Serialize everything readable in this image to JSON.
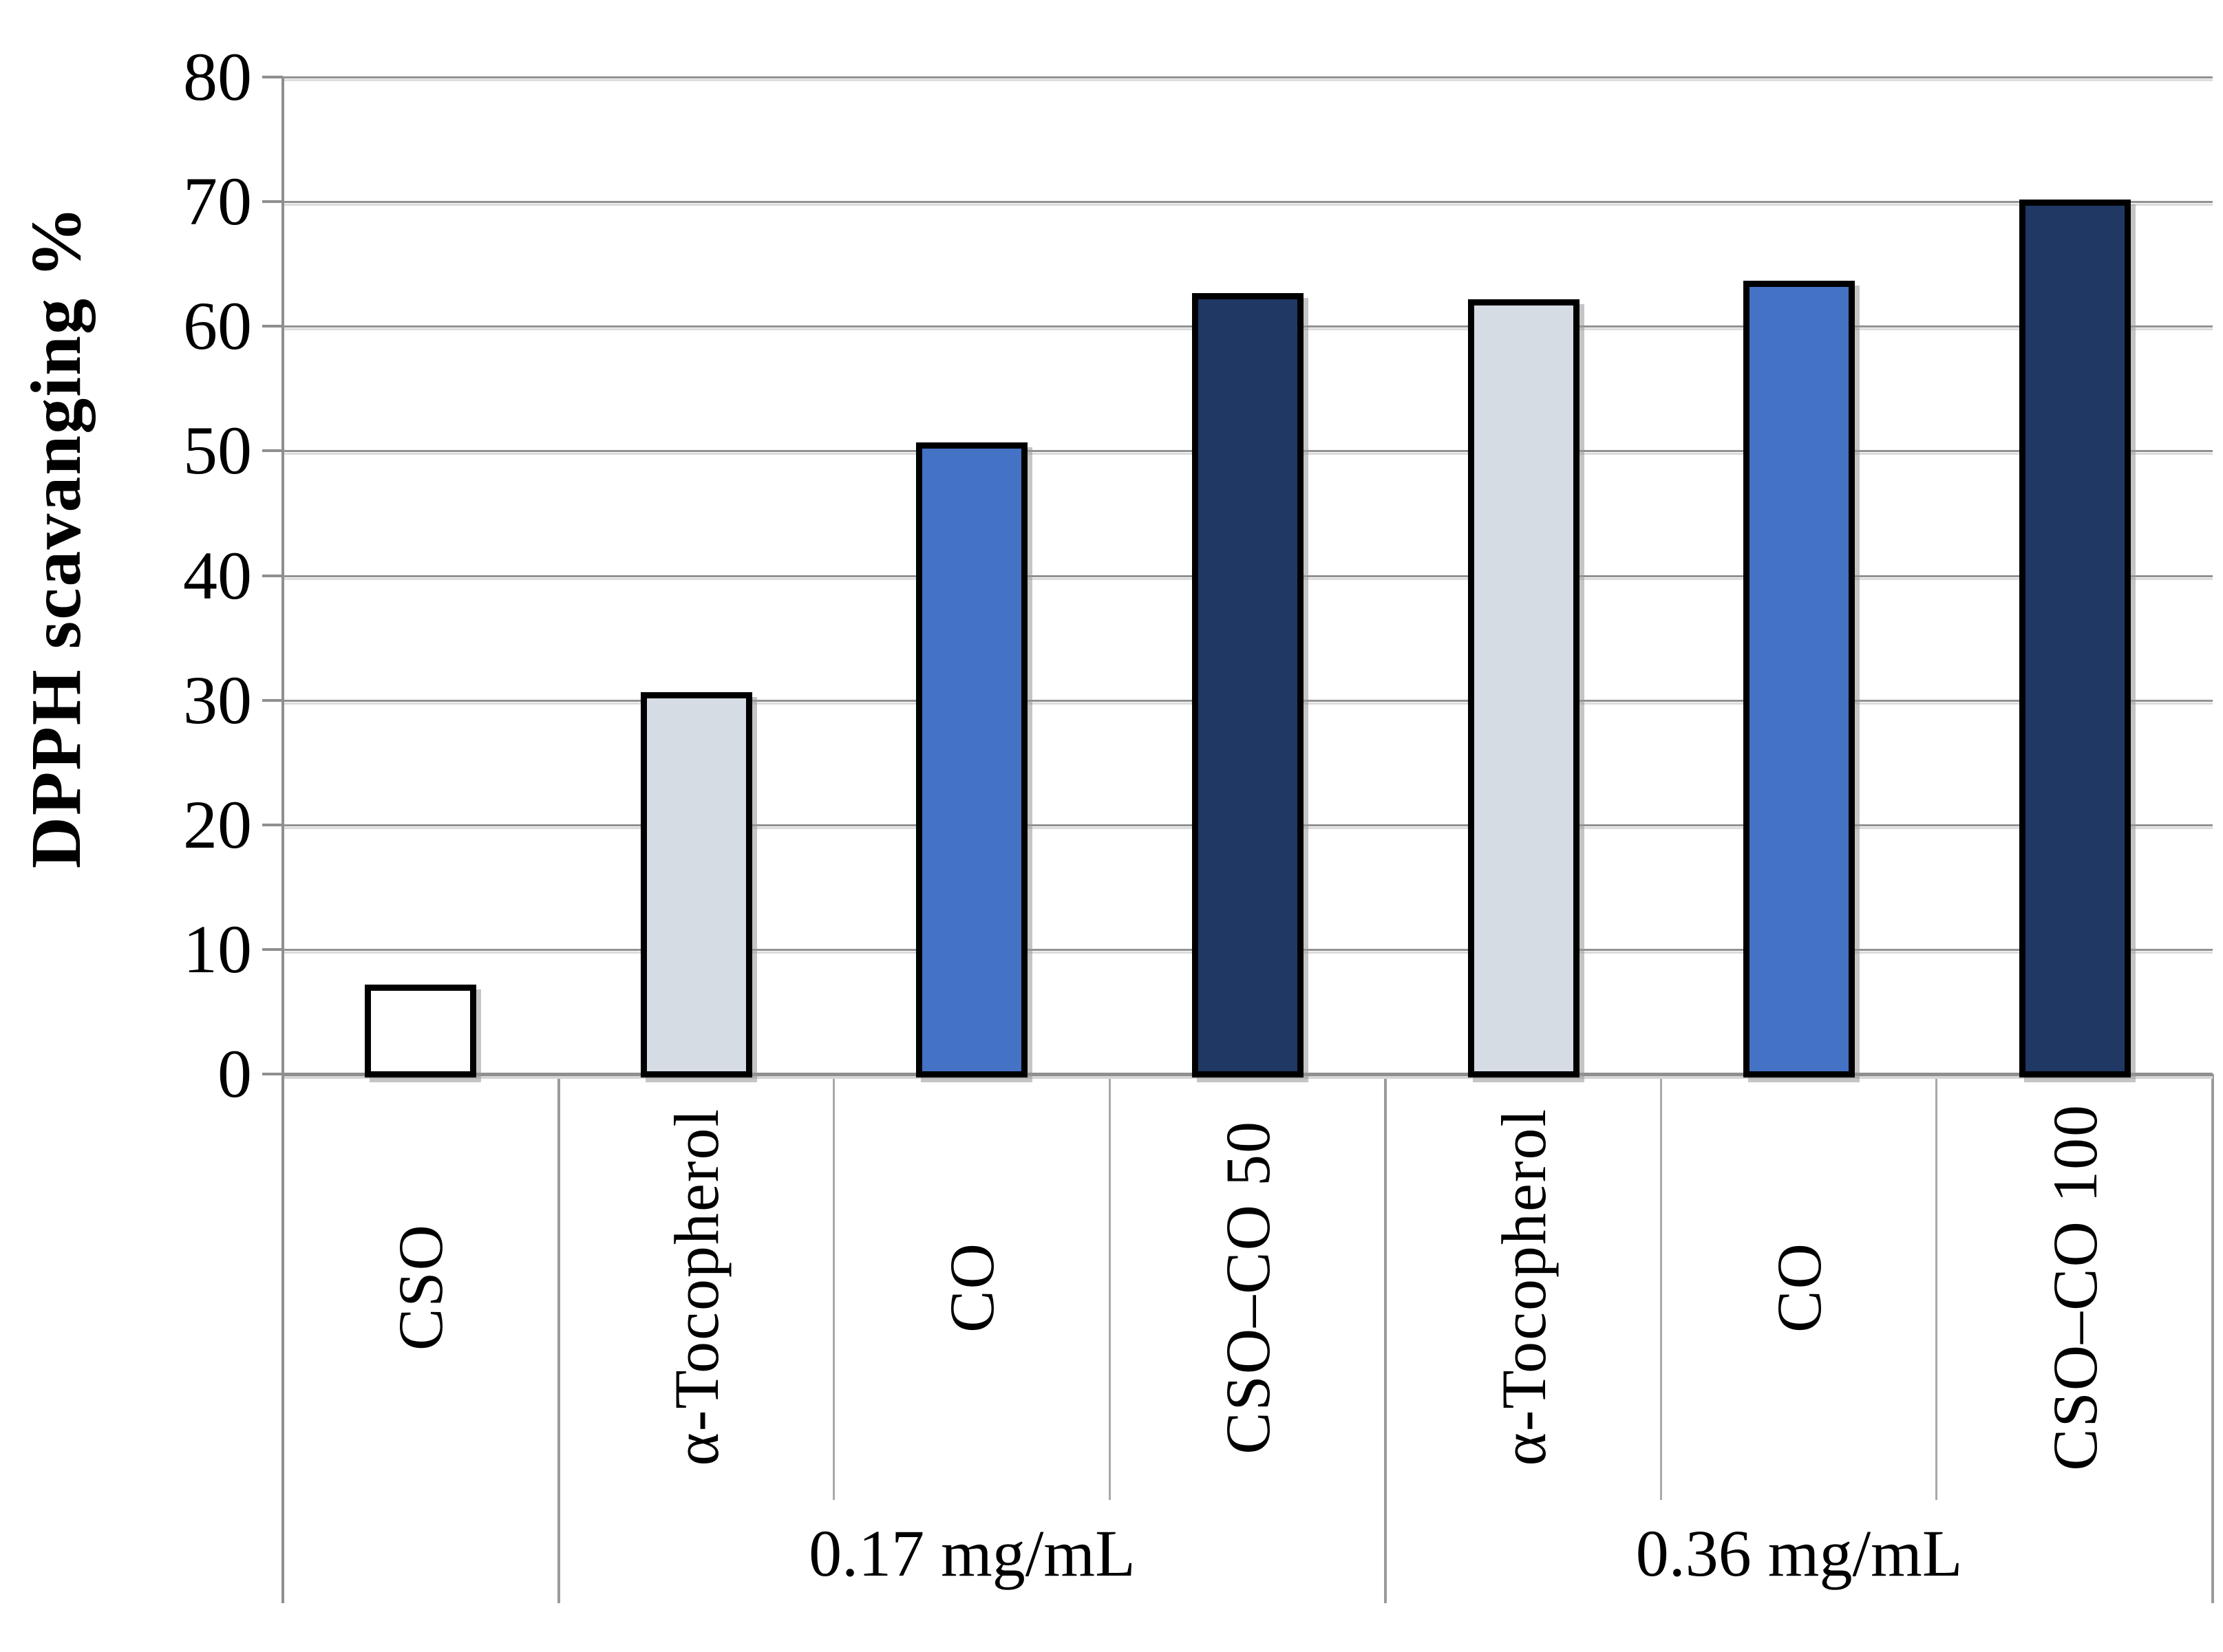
{
  "chart_data": {
    "type": "bar",
    "title": "",
    "xlabel": "",
    "ylabel": "DPPH scavanging %",
    "ylim": [
      0,
      80
    ],
    "ytick_step": 10,
    "grid": true,
    "legend": false,
    "categories": [
      "CSO",
      "α-Tocopherol",
      "CO",
      "CSO–CO 50",
      "α-Tocopherol",
      "CO",
      "CSO–CO 100"
    ],
    "values": [
      7,
      30.5,
      50.5,
      62.5,
      62,
      63.5,
      70
    ],
    "bar_colors": [
      "#FFFFFF",
      "#D6DCE4",
      "#4472C4",
      "#1F3864",
      "#D6DCE4",
      "#4472C4",
      "#1F3864"
    ],
    "bar_border_color": "#000000",
    "axis_color": "#8F8F8F",
    "gridline_color": "#919191",
    "group_labels": [
      {
        "label": "0.17 mg/mL",
        "start_index": 1,
        "end_index": 3
      },
      {
        "label": "0.36 mg/mL",
        "start_index": 4,
        "end_index": 6
      }
    ]
  }
}
